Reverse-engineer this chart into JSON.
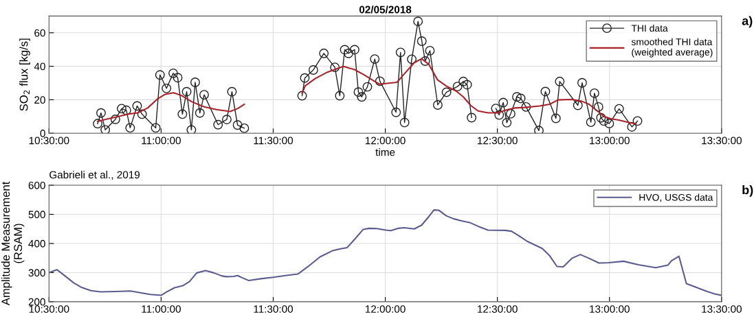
{
  "chart_data": [
    {
      "type": "line",
      "title": "02/05/2018",
      "xlabel": "time",
      "ylabel": "SO$_{2}$ flux [kg/s]",
      "annotations": [
        "a)"
      ],
      "xlim": [
        10.5,
        13.5
      ],
      "xticks": [
        {
          "value": 10.5,
          "label": "10:30:00"
        },
        {
          "value": 11.0,
          "label": "11:00:00"
        },
        {
          "value": 11.5,
          "label": "11:30:00"
        },
        {
          "value": 12.0,
          "label": "12:00:00"
        },
        {
          "value": 12.5,
          "label": "12:30:00"
        },
        {
          "value": 13.0,
          "label": "13:00:00"
        },
        {
          "value": 13.5,
          "label": "13:30:00"
        }
      ],
      "ylim": [
        0,
        70
      ],
      "yticks": [
        0,
        20,
        40,
        60
      ],
      "grid": true,
      "legend": "top right",
      "series": [
        {
          "name": "THI data",
          "color": "#222222",
          "marker": "circle",
          "x": [
            10.717,
            10.732,
            10.751,
            10.796,
            10.824,
            10.845,
            10.862,
            10.893,
            10.915,
            10.976,
            10.995,
            11.024,
            11.054,
            11.074,
            11.095,
            11.114,
            11.135,
            11.152,
            11.173,
            11.192,
            11.254,
            11.293,
            11.316,
            11.341,
            11.371,
            11.5,
            11.629,
            11.641,
            11.679,
            11.726,
            11.775,
            11.797,
            11.819,
            11.836,
            11.863,
            11.88,
            11.895,
            11.92,
            11.953,
            11.976,
            12.048,
            12.068,
            12.086,
            12.118,
            12.146,
            12.163,
            12.178,
            12.199,
            12.234,
            12.273,
            12.322,
            12.348,
            12.365,
            12.385,
            12.44,
            12.493,
            12.508,
            12.526,
            12.542,
            12.559,
            12.587,
            12.604,
            12.628,
            12.685,
            12.714,
            12.761,
            12.778,
            12.859,
            12.878,
            12.917,
            12.933,
            12.951,
            12.962,
            12.975,
            12.999,
            13.043,
            13.1,
            13.125
          ],
          "values": [
            5.7,
            12.1,
            2.0,
            8.3,
            14.7,
            13.7,
            3.2,
            16.3,
            11.4,
            3.2,
            34.8,
            26.8,
            35.8,
            33.2,
            11.4,
            24.8,
            2.0,
            30.4,
            12.1,
            23.0,
            5.1,
            8.2,
            24.8,
            4.9,
            3.0,
            null,
            22.4,
            33.0,
            37.8,
            47.7,
            39.4,
            22.4,
            49.9,
            47.7,
            49.9,
            24.6,
            21.7,
            27.7,
            44.3,
            31.1,
            12.5,
            48.3,
            6.4,
            44.2,
            66.8,
            55.0,
            43.1,
            49.3,
            16.9,
            24.5,
            27.9,
            30.9,
            29.0,
            9.3,
            null,
            14.8,
            10.9,
            18.3,
            6.3,
            11.6,
            21.7,
            20.8,
            15.7,
            1.6,
            24.9,
            8.9,
            30.9,
            16.7,
            30.1,
            6.6,
            23.9,
            15.7,
            9.2,
            7.3,
            5.8,
            14.6,
            3.8,
            7.3
          ]
        },
        {
          "name": "smoothed THI data\n(weighted average)",
          "color": "#a8232a",
          "marker": "none",
          "x": [
            10.717,
            10.753,
            10.797,
            10.852,
            10.896,
            10.94,
            10.984,
            11.016,
            11.055,
            11.093,
            11.137,
            11.192,
            11.247,
            11.308,
            11.341,
            11.371,
            11.5,
            11.629,
            11.643,
            11.687,
            11.742,
            11.813,
            11.863,
            11.907,
            11.951,
            11.975,
            12.052,
            12.085,
            12.129,
            12.162,
            12.195,
            12.233,
            12.272,
            12.315,
            12.348,
            12.381,
            12.414,
            12.458,
            12.502,
            12.535,
            12.579,
            12.623,
            12.689,
            12.733,
            12.771,
            12.832,
            12.876,
            12.909,
            12.942,
            12.975,
            13.008,
            13.041,
            13.085,
            13.118
          ],
          "values": [
            7.1,
            8.3,
            9.6,
            11.4,
            12.2,
            15.1,
            20.5,
            23.1,
            24.2,
            22.4,
            18.8,
            15.8,
            14.1,
            13.0,
            14.7,
            17.3,
            null,
            23.9,
            28.3,
            32.6,
            36.5,
            39.9,
            38.0,
            34.8,
            31.1,
            29.3,
            30.4,
            35.5,
            42.1,
            44.5,
            41.0,
            31.9,
            28.2,
            25.3,
            21.7,
            16.6,
            13.3,
            12.2,
            12.2,
            13.7,
            15.1,
            15.4,
            16.3,
            17.3,
            19.9,
            20.2,
            19.1,
            17.3,
            13.7,
            10.0,
            8.6,
            7.9,
            6.4,
            5.7
          ]
        }
      ]
    },
    {
      "type": "line",
      "ylabel": "Amplitude Measurement\n(RSAM)",
      "annotations": [
        "Gabrieli et al., 2019",
        "b)"
      ],
      "xlim": [
        10.5,
        13.5
      ],
      "xticks": [
        {
          "value": 10.5,
          "label": "10:30:00"
        },
        {
          "value": 11.0,
          "label": "11:00:00"
        },
        {
          "value": 11.5,
          "label": "11:30:00"
        },
        {
          "value": 12.0,
          "label": "12:00:00"
        },
        {
          "value": 12.5,
          "label": "12:30:00"
        },
        {
          "value": 13.0,
          "label": "13:00:00"
        },
        {
          "value": 13.5,
          "label": "13:30:00"
        }
      ],
      "ylim": [
        200,
        600
      ],
      "yticks": [
        200,
        300,
        400,
        500,
        600
      ],
      "grid": true,
      "legend": "top right",
      "series": [
        {
          "name": "HVO, USGS data",
          "color": "#5b5b8f",
          "marker": "none",
          "x": [
            10.5,
            10.535,
            10.566,
            10.61,
            10.643,
            10.687,
            10.731,
            10.797,
            10.863,
            10.907,
            10.951,
            11.0,
            11.027,
            11.06,
            11.099,
            11.126,
            11.159,
            11.198,
            11.236,
            11.269,
            11.291,
            11.324,
            11.341,
            11.363,
            11.39,
            11.445,
            11.5,
            11.555,
            11.61,
            11.654,
            11.709,
            11.764,
            11.797,
            11.83,
            11.863,
            11.901,
            11.929,
            11.962,
            12.003,
            12.024,
            12.057,
            12.085,
            12.129,
            12.162,
            12.195,
            12.217,
            12.239,
            12.272,
            12.304,
            12.337,
            12.376,
            12.414,
            12.458,
            12.535,
            12.563,
            12.601,
            12.634,
            12.7,
            12.733,
            12.766,
            12.794,
            12.832,
            12.87,
            12.909,
            12.953,
            12.997,
            13.063,
            13.129,
            13.206,
            13.261,
            13.277,
            13.31,
            13.343,
            13.392,
            13.436,
            13.469,
            13.5
          ],
          "values": [
            300,
            310,
            292,
            265,
            250,
            238,
            234,
            235,
            237,
            231,
            225,
            222,
            235,
            248,
            256,
            269,
            299,
            307,
            299,
            289,
            286,
            287,
            290,
            282,
            273,
            279,
            284,
            290,
            295,
            320,
            354,
            375,
            381,
            386,
            414,
            448,
            452,
            451,
            446,
            444,
            452,
            454,
            450,
            463,
            493,
            515,
            514,
            495,
            485,
            478,
            472,
            459,
            446,
            445,
            442,
            424,
            407,
            383,
            358,
            321,
            320,
            349,
            362,
            349,
            333,
            334,
            339,
            327,
            317,
            326,
            341,
            356,
            262,
            248,
            235,
            227,
            222
          ]
        }
      ]
    }
  ]
}
